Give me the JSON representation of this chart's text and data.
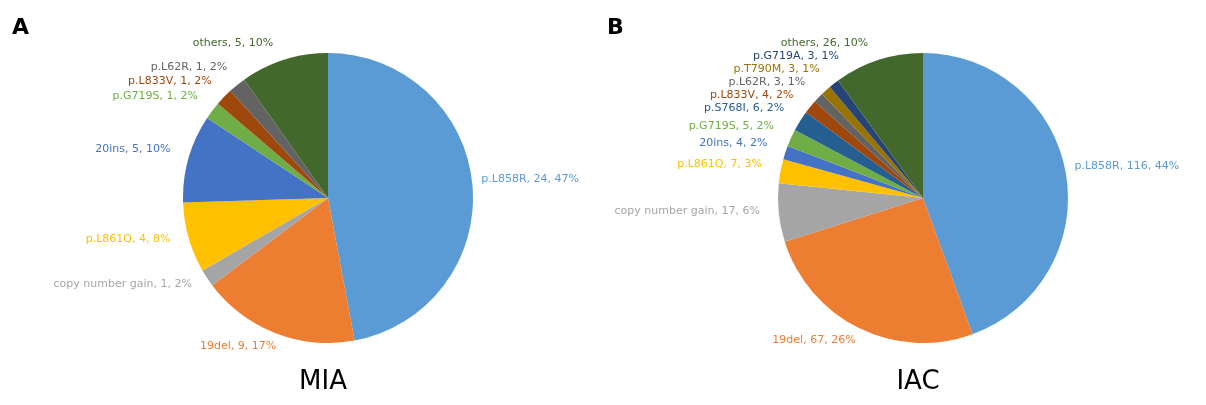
{
  "chart_data": [
    {
      "type": "pie",
      "title": "MIA",
      "annotations": [
        "A"
      ],
      "categories": [
        "p.L858R",
        "19del",
        "copy number gain",
        "p.L861Q",
        "20ins",
        "p.G719S",
        "p.L833V",
        "p.L62R",
        "others"
      ],
      "values": [
        24,
        9,
        1,
        4,
        5,
        1,
        1,
        1,
        5
      ],
      "value_labels": [
        "24, 47%",
        "9, 17%",
        "1, 2%",
        "4, 8%",
        "5, 10%",
        "1, 2%",
        "1, 2%",
        "1, 2%",
        "5, 10%"
      ],
      "colors": [
        "#5b9bd5",
        "#ed7d31",
        "#a5a5a5",
        "#ffc000",
        "#4472c4",
        "#70ad47",
        "#9e480e",
        "#636363",
        "#43682b"
      ]
    },
    {
      "type": "pie",
      "title": "IAC",
      "annotations": [
        "B"
      ],
      "categories": [
        "p.L858R",
        "19del",
        "copy number gain",
        "p.L861Q",
        "20ins",
        "p.G719S",
        "p.S768I",
        "p.L833V",
        "p.L62R",
        "p.T790M",
        "p.G719A",
        "others"
      ],
      "values": [
        116,
        67,
        17,
        7,
        4,
        5,
        6,
        4,
        3,
        3,
        3,
        26
      ],
      "value_labels": [
        "116, 44%",
        "67, 26%",
        "17, 6%",
        "7, 3%",
        "4, 2%",
        "5, 2%",
        "6, 2%",
        "4, 2%",
        "3, 1%",
        "3, 1%",
        "3, 1%",
        "26, 10%"
      ],
      "colors": [
        "#5b9bd5",
        "#ed7d31",
        "#a5a5a5",
        "#ffc000",
        "#4472c4",
        "#70ad47",
        "#255e91",
        "#9e480e",
        "#636363",
        "#997300",
        "#264478",
        "#43682b"
      ]
    }
  ]
}
